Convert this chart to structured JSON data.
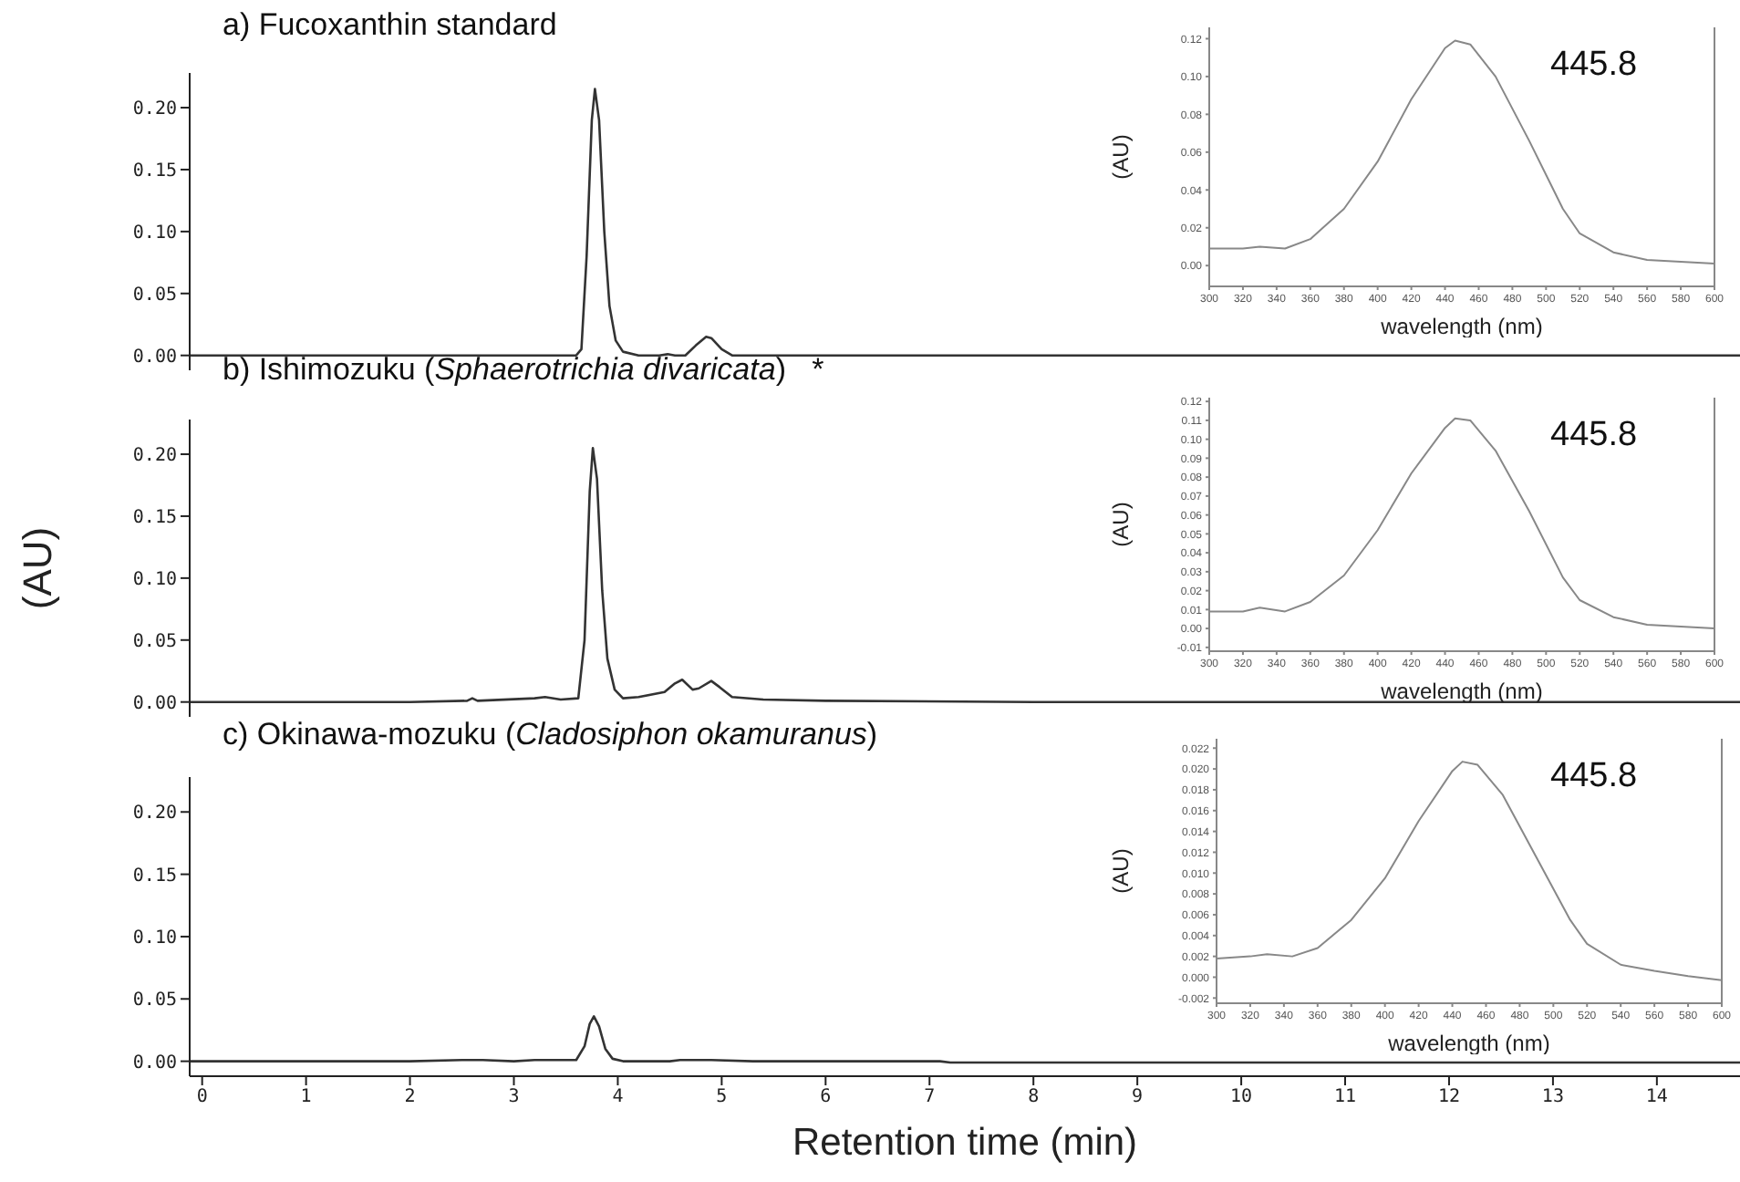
{
  "chart_data": [
    {
      "type": "line",
      "title": "a) Fucoxanthin standard",
      "x": [
        -0.12,
        2.0,
        3.6,
        3.65,
        3.7,
        3.75,
        3.78,
        3.82,
        3.87,
        3.92,
        3.98,
        4.05,
        4.2,
        4.4,
        4.48,
        4.55,
        4.65,
        4.75,
        4.85,
        4.9,
        5.0,
        5.1,
        8.0,
        14.8
      ],
      "series": [
        {
          "color": "#333333",
          "values": [
            0,
            0,
            0,
            0.005,
            0.08,
            0.19,
            0.215,
            0.19,
            0.1,
            0.04,
            0.012,
            0.003,
            0,
            0,
            0.001,
            0,
            0,
            0.008,
            0.015,
            0.014,
            0.005,
            0,
            0,
            0
          ]
        }
      ],
      "xlim": [
        -0.12,
        14.8
      ],
      "xticks": [
        0,
        1,
        2,
        3,
        4,
        5,
        6,
        7,
        8,
        9,
        10,
        11,
        12,
        13,
        14
      ],
      "ylim": [
        -0.012,
        0.228
      ],
      "yticks": [
        {
          "value": 0,
          "label": "0.00"
        },
        {
          "value": 0.05,
          "label": "0.05"
        },
        {
          "value": 0.1,
          "label": "0.10"
        },
        {
          "value": 0.15,
          "label": "0.15"
        },
        {
          "value": 0.2,
          "label": "0.20"
        }
      ],
      "tick_labels": "y",
      "marker": "none",
      "line_style": "solid"
    },
    {
      "type": "line",
      "xlabel": "wavelength (nm)",
      "ylabel": "(AU)",
      "annotations": [
        "445.8"
      ],
      "x": [
        300,
        320,
        330,
        345,
        360,
        380,
        400,
        420,
        440,
        446,
        455,
        470,
        490,
        510,
        520,
        540,
        560,
        580,
        600
      ],
      "series": [
        {
          "color": "#888888",
          "values": [
            0.009,
            0.009,
            0.01,
            0.009,
            0.014,
            0.03,
            0.055,
            0.088,
            0.115,
            0.119,
            0.117,
            0.1,
            0.066,
            0.03,
            0.017,
            0.007,
            0.003,
            0.002,
            0.001
          ]
        }
      ],
      "xlim": [
        300,
        600
      ],
      "xticks": [
        300,
        320,
        340,
        360,
        380,
        400,
        420,
        440,
        460,
        480,
        500,
        520,
        540,
        560,
        580,
        600
      ],
      "ylim": [
        -0.011,
        0.126
      ],
      "yticks": [
        {
          "value": 0,
          "label": "0.00"
        },
        {
          "value": 0.02,
          "label": "0.02"
        },
        {
          "value": 0.04,
          "label": "0.04"
        },
        {
          "value": 0.06,
          "label": "0.06"
        },
        {
          "value": 0.08,
          "label": "0.08"
        },
        {
          "value": 0.1,
          "label": "0.10"
        },
        {
          "value": 0.12,
          "label": "0.12"
        }
      ],
      "marker": "none",
      "line_style": "solid"
    },
    {
      "type": "line",
      "title": "b) Ishimozuku (Sphaerotrichia divaricata)   *",
      "ylabel": "(AU)",
      "x": [
        -0.12,
        2.0,
        2.55,
        2.6,
        2.65,
        3.2,
        3.3,
        3.45,
        3.62,
        3.68,
        3.73,
        3.76,
        3.8,
        3.85,
        3.9,
        3.97,
        4.05,
        4.2,
        4.45,
        4.55,
        4.62,
        4.72,
        4.78,
        4.9,
        4.98,
        5.1,
        5.4,
        6.0,
        8.0,
        14.8
      ],
      "series": [
        {
          "color": "#333333",
          "values": [
            0,
            0,
            0.001,
            0.003,
            0.001,
            0.003,
            0.004,
            0.002,
            0.003,
            0.05,
            0.17,
            0.205,
            0.18,
            0.09,
            0.035,
            0.01,
            0.003,
            0.004,
            0.008,
            0.015,
            0.018,
            0.01,
            0.011,
            0.017,
            0.012,
            0.004,
            0.002,
            0.001,
            0,
            0
          ]
        }
      ],
      "xlim": [
        -0.12,
        14.8
      ],
      "xticks": [
        0,
        1,
        2,
        3,
        4,
        5,
        6,
        7,
        8,
        9,
        10,
        11,
        12,
        13,
        14
      ],
      "ylim": [
        -0.012,
        0.228
      ],
      "yticks": [
        {
          "value": 0,
          "label": "0.00"
        },
        {
          "value": 0.05,
          "label": "0.05"
        },
        {
          "value": 0.1,
          "label": "0.10"
        },
        {
          "value": 0.15,
          "label": "0.15"
        },
        {
          "value": 0.2,
          "label": "0.20"
        }
      ],
      "tick_labels": "y",
      "marker": "none",
      "line_style": "solid"
    },
    {
      "type": "line",
      "xlabel": "wavelength (nm)",
      "ylabel": "(AU)",
      "annotations": [
        "445.8"
      ],
      "x": [
        300,
        320,
        330,
        345,
        360,
        380,
        400,
        420,
        440,
        446,
        455,
        470,
        490,
        510,
        520,
        540,
        560,
        580,
        600
      ],
      "series": [
        {
          "color": "#888888",
          "values": [
            0.009,
            0.009,
            0.011,
            0.009,
            0.014,
            0.028,
            0.052,
            0.082,
            0.106,
            0.111,
            0.11,
            0.094,
            0.062,
            0.027,
            0.015,
            0.006,
            0.002,
            0.001,
            0.0
          ]
        }
      ],
      "xlim": [
        300,
        600
      ],
      "xticks": [
        300,
        320,
        340,
        360,
        380,
        400,
        420,
        440,
        460,
        480,
        500,
        520,
        540,
        560,
        580,
        600
      ],
      "ylim": [
        -0.012,
        0.122
      ],
      "yticks": [
        {
          "value": -0.01,
          "label": "-0.01"
        },
        {
          "value": 0,
          "label": "0.00"
        },
        {
          "value": 0.01,
          "label": "0.01"
        },
        {
          "value": 0.02,
          "label": "0.02"
        },
        {
          "value": 0.03,
          "label": "0.03"
        },
        {
          "value": 0.04,
          "label": "0.04"
        },
        {
          "value": 0.05,
          "label": "0.05"
        },
        {
          "value": 0.06,
          "label": "0.06"
        },
        {
          "value": 0.07,
          "label": "0.07"
        },
        {
          "value": 0.08,
          "label": "0.08"
        },
        {
          "value": 0.09,
          "label": "0.09"
        },
        {
          "value": 0.1,
          "label": "0.10"
        },
        {
          "value": 0.11,
          "label": "0.11"
        },
        {
          "value": 0.12,
          "label": "0.12"
        }
      ],
      "marker": "none",
      "line_style": "solid"
    },
    {
      "type": "line",
      "title": "c) Okinawa-mozuku (Cladosiphon okamuranus)",
      "xlabel": "Retention time (min)",
      "x": [
        -0.12,
        2.0,
        2.5,
        2.7,
        3.0,
        3.2,
        3.4,
        3.6,
        3.68,
        3.73,
        3.77,
        3.82,
        3.88,
        3.95,
        4.05,
        4.5,
        4.6,
        4.9,
        5.3,
        6.0,
        7.1,
        7.2,
        14.8
      ],
      "series": [
        {
          "color": "#333333",
          "values": [
            0,
            0,
            0.001,
            0.001,
            0.0,
            0.001,
            0.001,
            0.001,
            0.012,
            0.03,
            0.036,
            0.028,
            0.01,
            0.002,
            0.0,
            0.0,
            0.001,
            0.001,
            0.0,
            0.0,
            0.0,
            -0.001,
            -0.001
          ]
        }
      ],
      "xlim": [
        -0.12,
        14.8
      ],
      "xticks": [
        0,
        1,
        2,
        3,
        4,
        5,
        6,
        7,
        8,
        9,
        10,
        11,
        12,
        13,
        14
      ],
      "ylim": [
        -0.012,
        0.228
      ],
      "yticks": [
        {
          "value": 0,
          "label": "0.00"
        },
        {
          "value": 0.05,
          "label": "0.05"
        },
        {
          "value": 0.1,
          "label": "0.10"
        },
        {
          "value": 0.15,
          "label": "0.15"
        },
        {
          "value": 0.2,
          "label": "0.20"
        }
      ],
      "marker": "none",
      "line_style": "solid"
    },
    {
      "type": "line",
      "xlabel": "wavelength (nm)",
      "ylabel": "(AU)",
      "annotations": [
        "445.8"
      ],
      "x": [
        300,
        320,
        330,
        345,
        360,
        380,
        400,
        420,
        440,
        446,
        455,
        470,
        490,
        510,
        520,
        540,
        560,
        580,
        600
      ],
      "series": [
        {
          "color": "#888888",
          "values": [
            0.0018,
            0.002,
            0.0022,
            0.002,
            0.0028,
            0.0055,
            0.0095,
            0.015,
            0.0198,
            0.0207,
            0.0204,
            0.0175,
            0.0115,
            0.0055,
            0.0032,
            0.0012,
            0.0006,
            0.0001,
            -0.0003
          ]
        }
      ],
      "xlim": [
        300,
        600
      ],
      "xticks": [
        300,
        320,
        340,
        360,
        380,
        400,
        420,
        440,
        460,
        480,
        500,
        520,
        540,
        560,
        580,
        600
      ],
      "ylim": [
        -0.0025,
        0.0229
      ],
      "yticks": [
        {
          "value": -0.002,
          "label": "-0.002"
        },
        {
          "value": 0,
          "label": "0.000"
        },
        {
          "value": 0.002,
          "label": "0.002"
        },
        {
          "value": 0.004,
          "label": "0.004"
        },
        {
          "value": 0.006,
          "label": "0.006"
        },
        {
          "value": 0.008,
          "label": "0.008"
        },
        {
          "value": 0.01,
          "label": "0.010"
        },
        {
          "value": 0.012,
          "label": "0.012"
        },
        {
          "value": 0.014,
          "label": "0.014"
        },
        {
          "value": 0.016,
          "label": "0.016"
        },
        {
          "value": 0.018,
          "label": "0.018"
        },
        {
          "value": 0.02,
          "label": "0.020"
        },
        {
          "value": 0.022,
          "label": "0.022"
        }
      ],
      "marker": "none",
      "line_style": "solid"
    }
  ]
}
